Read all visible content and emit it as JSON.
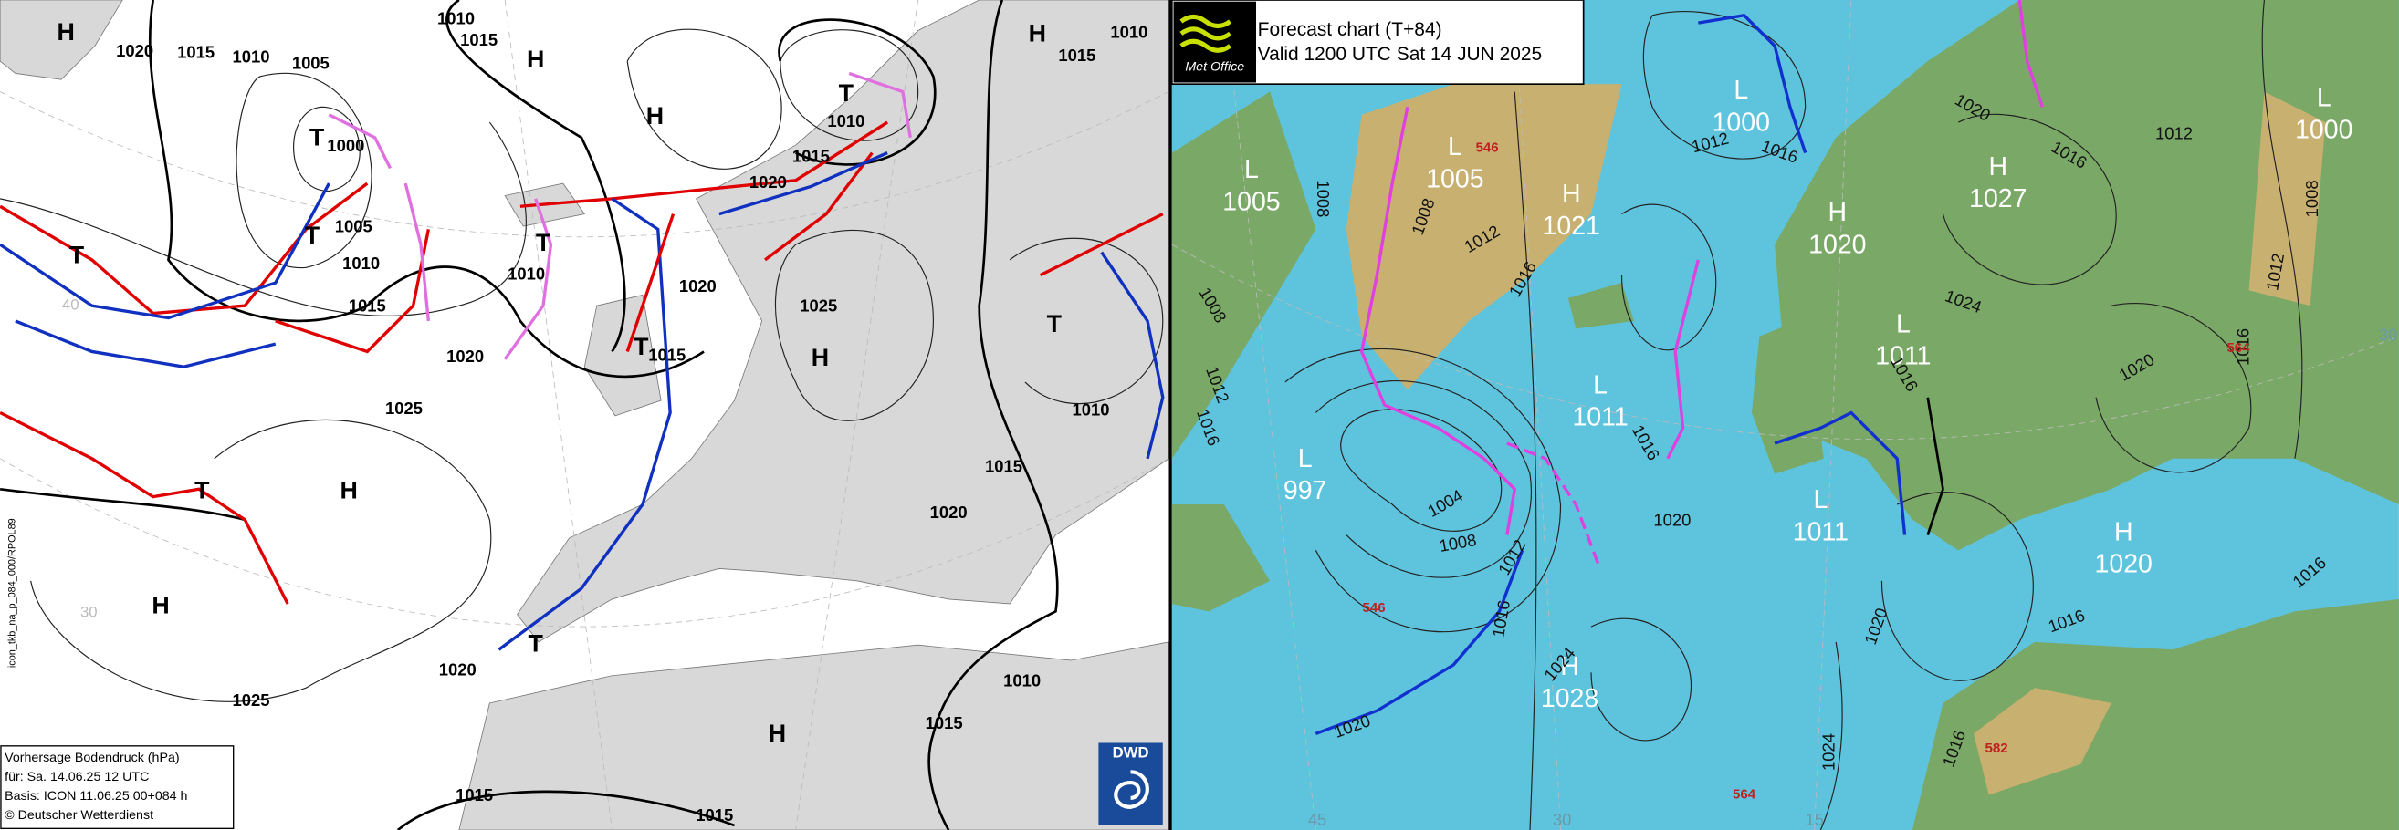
{
  "dwd_chart": {
    "labels": [
      "H",
      1020,
      1015,
      1010,
      1005,
      1010,
      1015,
      "H",
      "H",
      "H",
      1010,
      1015,
      "T",
      1010,
      1015,
      1020,
      "T",
      1000,
      "T",
      1005,
      1010,
      1015,
      1020,
      1025,
      "T",
      "T",
      1010,
      1020,
      1025,
      "H",
      "T",
      1015,
      "T",
      1010,
      1015,
      1020,
      "T",
      "H",
      "H",
      "T",
      1020,
      1025,
      1010,
      1015,
      "H",
      1015,
      1015
    ],
    "grid_labels": [
      40,
      30
    ],
    "file_id": "icon_tkb_na_p_084_000/RPOL89",
    "info": [
      "Vorhersage Bodendruck (hPa)",
      "für:  Sa. 14.06.25  12 UTC",
      "Basis: ICON  11.06.25 00+084 h",
      "© Deutscher Wetterdienst"
    ],
    "logo": "DWD"
  },
  "metoffice_chart": {
    "logo": "Met Office",
    "title": "Forecast chart (T+84)",
    "valid": "Valid 1200 UTC Sat 14 JUN 2025",
    "centres": [
      {
        "type": "L",
        "pressure": 1005
      },
      {
        "type": "L",
        "pressure": 1005
      },
      {
        "type": "H",
        "pressure": 1021
      },
      {
        "type": "L",
        "pressure": 1000
      },
      {
        "type": "H",
        "pressure": 1020
      },
      {
        "type": "H",
        "pressure": 1027
      },
      {
        "type": "L",
        "pressure": 1000
      },
      {
        "type": "L",
        "pressure": 1011
      },
      {
        "type": "L",
        "pressure": 1011
      },
      {
        "type": "L",
        "pressure": 997
      },
      {
        "type": "L",
        "pressure": 1011
      },
      {
        "type": "H",
        "pressure": 1020
      },
      {
        "type": "H",
        "pressure": 1028
      }
    ],
    "isobar_labels": [
      1008,
      1008,
      1012,
      1016,
      1008,
      1012,
      1016,
      1004,
      1008,
      1012,
      1016,
      1020,
      1024,
      1020,
      1024,
      1020,
      1016,
      1012,
      1016,
      1020,
      1016,
      1012,
      1024,
      1016,
      1020,
      1016,
      1012,
      1008,
      1016,
      1016,
      1016
    ],
    "thickness_labels": [
      546,
      546,
      564,
      564,
      582
    ],
    "grid_labels": [
      45,
      30,
      15,
      30
    ]
  }
}
